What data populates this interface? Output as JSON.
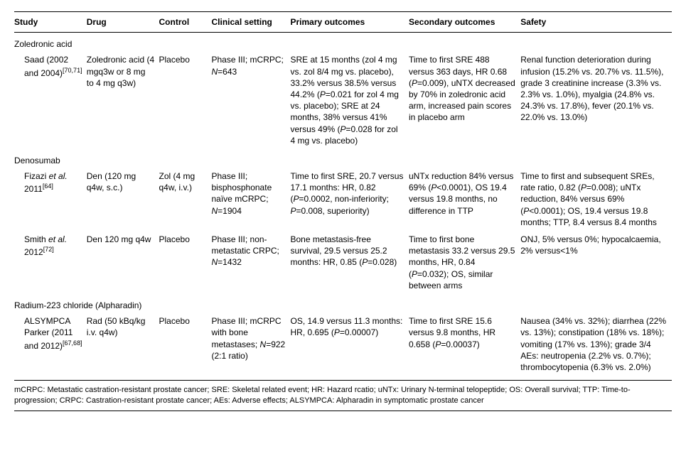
{
  "columns": [
    "Study",
    "Drug",
    "Control",
    "Clinical setting",
    "Primary outcomes",
    "Secondary outcomes",
    "Safety"
  ],
  "col_widths": [
    "11%",
    "11%",
    "8%",
    "12%",
    "18%",
    "17%",
    "23%"
  ],
  "groups": [
    {
      "label": "Zoledronic acid",
      "rows": [
        {
          "study_html": "Saad (2002 and 2004)<sup>[70,71]</sup>",
          "drug": "Zoledronic acid (4 mgq3w or 8 mg to 4 mg q3w)",
          "control": "Placebo",
          "setting_html": "Phase III; mCRPC; <i>N</i>=643",
          "primary_html": "SRE at 15 months (zol 4 mg vs. zol 8/4 mg vs. placebo), 33.2% versus 38.5% versus 44.2% (<i>P</i>=0.021 for zol 4 mg vs. placebo); SRE at 24 months, 38% versus 41% versus 49% (<i>P</i>=0.028 for zol 4 mg vs. placebo)",
          "secondary_html": "Time to first SRE 488 versus 363 days, HR 0.68 (<i>P</i>=0.009), uNTX decreased by 70% in zoledronic acid arm, increased pain scores in placebo arm",
          "safety_html": "Renal function deterioration during infusion (15.2% vs. 20.7% vs. 11.5%), grade 3 creatinine increase (3.3% vs. 2.3% vs. 1.0%), myalgia (24.8% vs. 24.3% vs. 17.8%), fever (20.1% vs. 22.0% vs. 13.0%)"
        }
      ]
    },
    {
      "label": "Denosumab",
      "rows": [
        {
          "study_html": "Fizazi <i>et al.</i> 2011<sup>[64]</sup>",
          "drug": "Den (120 mg q4w, s.c.)",
          "control": "Zol (4 mg q4w, i.v.)",
          "setting_html": "Phase III; bisphosphonate naïve mCRPC; <i>N</i>=1904",
          "primary_html": "Time to first SRE, 20.7 versus 17.1 months: HR, 0.82 (<i>P</i>=0.0002, non-inferiority; <i>P</i>=0.008, superiority)",
          "secondary_html": "uNTx reduction 84% versus 69% (<i>P</i>&lt;0.0001), OS 19.4 versus 19.8 months, no difference in TTP",
          "safety_html": "Time to first and subsequent SREs, rate ratio, 0.82 (<i>P</i>=0.008); uNTx reduction, 84% versus 69% (<i>P</i>&lt;0.0001); OS, 19.4 versus 19.8 months; TTP, 8.4 versus 8.4 months"
        },
        {
          "study_html": "Smith <i>et al.</i> 2012<sup>[72]</sup>",
          "drug": "Den 120 mg q4w",
          "control": "Placebo",
          "setting_html": "Phase III; non-metastatic CRPC; <i>N</i>=1432",
          "primary_html": "Bone metastasis-free survival, 29.5 versus 25.2 months: HR, 0.85 (<i>P</i>=0.028)",
          "secondary_html": "Time to first bone metastasis 33.2 versus 29.5 months, HR, 0.84 (<i>P</i>=0.032); OS, similar between arms",
          "safety_html": "ONJ, 5% versus 0%; hypocalcaemia, 2% versus&lt;1%"
        }
      ]
    },
    {
      "label": "Radium-223 chloride (Alpharadin)",
      "rows": [
        {
          "study_html": "ALSYMPCA Parker (2011 and 2012)<sup>[67,68]</sup>",
          "drug": "Rad (50 kBq/kg i.v. q4w)",
          "control": "Placebo",
          "setting_html": "Phase III; mCRPC with bone metastases; <i>N</i>=922 (2:1 ratio)",
          "primary_html": "OS, 14.9 versus 11.3 months: HR, 0.695 (<i>P</i>=0.00007)",
          "secondary_html": "Time to first SRE 15.6 versus 9.8 months, HR 0.658 (<i>P</i>=0.00037)",
          "safety_html": "Nausea (34% vs. 32%); diarrhea (22% vs. 13%); constipation (18% vs. 18%); vomiting (17% vs. 13%); grade 3/4 AEs: neutropenia (2.2% vs. 0.7%); thrombocytopenia (6.3% vs. 2.0%)"
        }
      ]
    }
  ],
  "footnote": "mCRPC: Metastatic castration-resistant prostate cancer; SRE: Skeletal related event; HR: Hazard rcatio; uNTx: Urinary N-terminal telopeptide; OS: Overall survival; TTP: Time-to-progression; CRPC: Castration-resistant prostate cancer; AEs: Adverse effects; ALSYMPCA: Alpharadin in symptomatic prostate cancer"
}
